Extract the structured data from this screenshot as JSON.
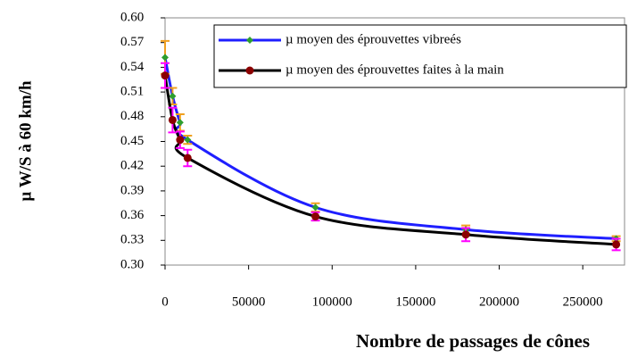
{
  "chart_data": {
    "type": "line",
    "x_label": "Nombre de passages de cônes",
    "y_label": "µ W/S à 60 km/h",
    "x": [
      0,
      4500,
      9000,
      13500,
      90000,
      180000,
      270000
    ],
    "series": [
      {
        "name": "µ moyen des éprouvettes vibreés",
        "color": "#1f1fff",
        "marker_color": "#2e9e2e",
        "error_color": "#f0a020",
        "values": [
          0.552,
          0.505,
          0.473,
          0.452,
          0.37,
          0.343,
          0.332
        ],
        "errors": [
          0.02,
          0.01,
          0.01,
          0.005,
          0.005,
          0.005,
          0.003
        ]
      },
      {
        "name": "µ moyen des éprouvettes faites à la main",
        "color": "#000000",
        "marker_color": "#8b0000",
        "error_color": "#ff00ff",
        "values": [
          0.53,
          0.476,
          0.452,
          0.43,
          0.359,
          0.337,
          0.325
        ],
        "errors": [
          0.015,
          0.015,
          0.01,
          0.01,
          0.005,
          0.008,
          0.007
        ]
      }
    ],
    "xlim": [
      0,
      275000
    ],
    "xticks": [
      0,
      50000,
      100000,
      150000,
      200000,
      250000
    ],
    "ylim": [
      0.3,
      0.6
    ],
    "yticks": [
      {
        "value": 0.3,
        "label": "0.30"
      },
      0.33,
      0.36,
      0.39,
      0.42,
      0.45,
      0.48,
      0.51,
      0.54,
      0.57,
      {
        "value": 0.6,
        "label": "0.60"
      }
    ],
    "legend": "top-right"
  }
}
